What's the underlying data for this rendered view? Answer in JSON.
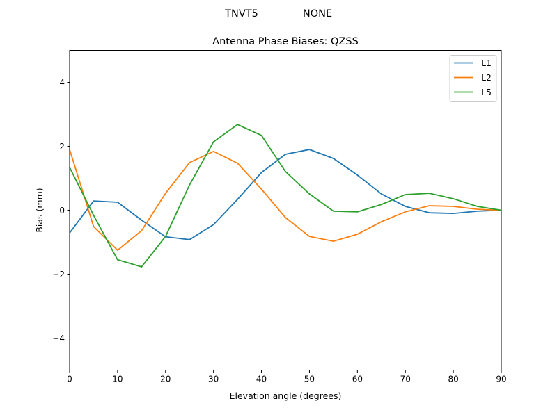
{
  "suptitle": {
    "station": "TNVT5",
    "radome": "NONE"
  },
  "chart_data": {
    "type": "line",
    "title": "Antenna Phase Biases: QZSS",
    "xlabel": "Elevation angle (degrees)",
    "ylabel": "Bias (mm)",
    "xlim": [
      0,
      90
    ],
    "ylim": [
      -5,
      5
    ],
    "xticks": [
      0,
      10,
      20,
      30,
      40,
      50,
      60,
      70,
      80,
      90
    ],
    "yticks": [
      -4,
      -2,
      0,
      2,
      4
    ],
    "ytick_labels": [
      "−4",
      "−2",
      "0",
      "2",
      "4"
    ],
    "grid": false,
    "legend_placement": "top-right",
    "x": [
      0,
      5,
      10,
      15,
      20,
      25,
      30,
      35,
      40,
      45,
      50,
      55,
      60,
      65,
      70,
      75,
      80,
      85,
      90
    ],
    "series": [
      {
        "name": "L1",
        "color": "#1f77b4",
        "values": [
          -0.71,
          0.29,
          0.25,
          -0.31,
          -0.83,
          -0.92,
          -0.45,
          0.34,
          1.18,
          1.75,
          1.9,
          1.62,
          1.1,
          0.51,
          0.12,
          -0.08,
          -0.1,
          -0.03,
          0
        ]
      },
      {
        "name": "L2",
        "color": "#ff7f0e",
        "values": [
          1.9,
          -0.51,
          -1.25,
          -0.64,
          0.53,
          1.49,
          1.84,
          1.47,
          0.66,
          -0.23,
          -0.82,
          -0.97,
          -0.75,
          -0.36,
          -0.05,
          0.14,
          0.12,
          0.03,
          0
        ]
      },
      {
        "name": "L5",
        "color": "#2ca02c",
        "values": [
          1.34,
          -0.16,
          -1.55,
          -1.77,
          -0.82,
          0.79,
          2.14,
          2.68,
          2.34,
          1.21,
          0.51,
          -0.03,
          -0.05,
          0.18,
          0.49,
          0.53,
          0.36,
          0.12,
          0
        ]
      }
    ]
  }
}
